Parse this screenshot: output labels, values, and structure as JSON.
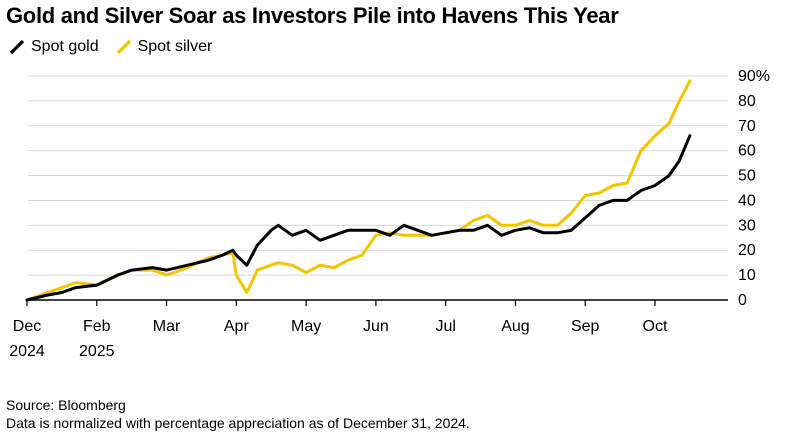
{
  "chart_data": {
    "type": "line",
    "title": "Gold and Silver Soar as Investors Pile into Havens This Year",
    "ylabel": "",
    "xlabel": "",
    "ylim": [
      0,
      90
    ],
    "y_ticks": [
      "0",
      "10",
      "20",
      "30",
      "40",
      "50",
      "60",
      "70",
      "80",
      "90%"
    ],
    "x_ticks": [
      {
        "line1": "Dec",
        "line2": "2024"
      },
      {
        "line1": "Feb",
        "line2": "2025"
      },
      {
        "line1": "Mar",
        "line2": ""
      },
      {
        "line1": "Apr",
        "line2": ""
      },
      {
        "line1": "May",
        "line2": ""
      },
      {
        "line1": "Jun",
        "line2": ""
      },
      {
        "line1": "Jul",
        "line2": ""
      },
      {
        "line1": "Aug",
        "line2": ""
      },
      {
        "line1": "Sep",
        "line2": ""
      },
      {
        "line1": "Oct",
        "line2": ""
      }
    ],
    "x_tick_months": [
      0,
      1,
      2,
      3,
      4,
      5,
      6,
      7,
      8,
      9
    ],
    "x_max_months": 9.5,
    "series": [
      {
        "name": "Spot gold",
        "color": "#000000",
        "x": [
          0,
          0.3,
          0.5,
          0.7,
          1.0,
          1.3,
          1.5,
          1.8,
          2.0,
          2.3,
          2.6,
          2.8,
          2.95,
          3.0,
          3.15,
          3.3,
          3.5,
          3.6,
          3.8,
          4.0,
          4.2,
          4.4,
          4.6,
          4.8,
          5.0,
          5.2,
          5.4,
          5.6,
          5.8,
          6.0,
          6.2,
          6.4,
          6.6,
          6.8,
          7.0,
          7.2,
          7.4,
          7.6,
          7.8,
          8.0,
          8.2,
          8.4,
          8.6,
          8.8,
          9.0,
          9.2,
          9.35,
          9.5
        ],
        "values": [
          0,
          2,
          3,
          5,
          6,
          10,
          12,
          13,
          12,
          14,
          16,
          18,
          20,
          18,
          14,
          22,
          28,
          30,
          26,
          28,
          24,
          26,
          28,
          28,
          28,
          26,
          30,
          28,
          26,
          27,
          28,
          28,
          30,
          26,
          28,
          29,
          27,
          27,
          28,
          33,
          38,
          40,
          40,
          44,
          46,
          50,
          56,
          66
        ]
      },
      {
        "name": "Spot silver",
        "color": "#f5c400",
        "x": [
          0,
          0.3,
          0.5,
          0.7,
          1.0,
          1.3,
          1.5,
          1.8,
          2.0,
          2.3,
          2.6,
          2.8,
          2.95,
          3.0,
          3.15,
          3.3,
          3.5,
          3.6,
          3.8,
          4.0,
          4.2,
          4.4,
          4.6,
          4.8,
          5.0,
          5.2,
          5.4,
          5.6,
          5.8,
          6.0,
          6.2,
          6.4,
          6.6,
          6.8,
          7.0,
          7.2,
          7.4,
          7.6,
          7.8,
          8.0,
          8.2,
          8.4,
          8.6,
          8.8,
          9.0,
          9.2,
          9.35,
          9.5
        ],
        "values": [
          0,
          3,
          5,
          7,
          6,
          10,
          12,
          12,
          10,
          13,
          17,
          18,
          19,
          10,
          3,
          12,
          14,
          15,
          14,
          11,
          14,
          13,
          16,
          18,
          26,
          27,
          26,
          26,
          26,
          27,
          28,
          32,
          34,
          30,
          30,
          32,
          30,
          30,
          35,
          42,
          43,
          46,
          47,
          60,
          66,
          71,
          80,
          88
        ]
      }
    ]
  },
  "legend": {
    "gold_label": "Spot gold",
    "silver_label": "Spot silver"
  },
  "footer": {
    "source": "Source: Bloomberg",
    "note": "Data is normalized with percentage appreciation as of December 31, 2024."
  }
}
